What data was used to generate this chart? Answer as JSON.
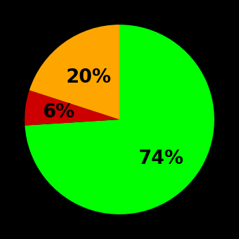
{
  "slices": [
    74,
    6,
    20
  ],
  "colors": [
    "#00ff00",
    "#cc0000",
    "#ffa500"
  ],
  "labels": [
    "74%",
    "6%",
    "20%"
  ],
  "label_radii": [
    0.6,
    0.65,
    0.55
  ],
  "background_color": "#000000",
  "text_color": "#000000",
  "startangle": 90,
  "counterclock": false,
  "figsize": [
    3.5,
    3.5
  ],
  "dpi": 100,
  "fontsize": 20
}
